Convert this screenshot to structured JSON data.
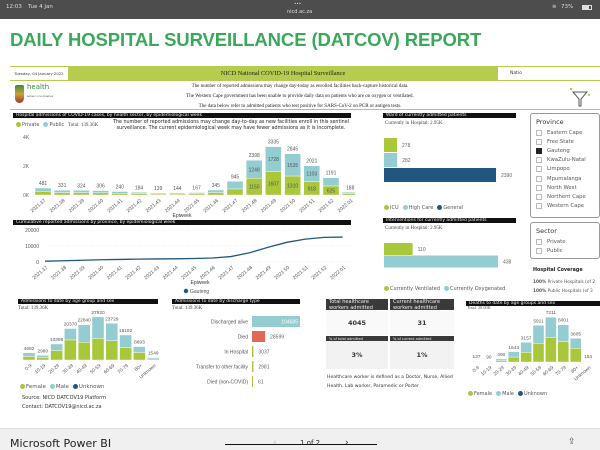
{
  "status_bar": {
    "time": "12:03",
    "date": "Tue 4 Jan",
    "url": "nicd.ac.za",
    "battery": "73%",
    "dots": "•••"
  },
  "report_title": "DAILY HOSPITAL SURVEILLANCE (DATCOV) REPORT",
  "banner": {
    "date": "Tuesday, 04 January 2022",
    "title": "NICD National COVID-19 Hospital Surveillance",
    "right_tab": "Natio"
  },
  "logo": {
    "text": "health",
    "sub": "REPUBLIC OF SOUTH AFRICA"
  },
  "notes": [
    "The number of reported admissions may change day-today as enrolled facilities back-capture historical data.",
    "The Western Cape government has been unable to provide daily data on patients who are on oxygen or ventilated.",
    "The data below refer to admitted patients who test positive for SARS-CoV-2 on PCR or antigen tests."
  ],
  "colors": {
    "green": "#a8c73a",
    "teal": "#93cdd1",
    "navy": "#21577e",
    "red": "#e06a55",
    "title_green": "#3aa85a"
  },
  "chart_data": [
    {
      "type": "bar",
      "stacked": true,
      "title": "Hospital admissions of COVID-19 cases, by health sector, by epidemiological week",
      "total": "Total: 139.36K",
      "note": "The number of reported admissions may change day-to-day as new facilities enroll in this sentinel surveillance. The current epidemiological week may have fewer admissions as it is incomplete.",
      "xlabel": "Epiweek",
      "yticks": [
        "0K",
        "2K",
        "4K"
      ],
      "ylim": [
        0,
        4000
      ],
      "categories": [
        "2021.37",
        "2021.38",
        "2021.39",
        "2021.40",
        "2021.41",
        "2021.42",
        "2021.43",
        "2021.44",
        "2021.45",
        "2021.46",
        "2021.47",
        "2021.48",
        "2021.49",
        "2021.50",
        "2021.51",
        "2021.52",
        "2022.01"
      ],
      "totals": [
        481,
        331,
        324,
        306,
        240,
        184,
        139,
        144,
        167,
        345,
        945,
        2398,
        3335,
        2845,
        2021,
        1191,
        188
      ],
      "series": [
        {
          "name": "Private",
          "values": [
            250,
            170,
            165,
            150,
            120,
            90,
            70,
            70,
            80,
            170,
            418,
            1150,
            1607,
            1310,
            918,
            625,
            90
          ]
        },
        {
          "name": "Public",
          "values": [
            231,
            161,
            159,
            156,
            120,
            94,
            69,
            74,
            87,
            175,
            527,
            1248,
            1728,
            1535,
            1103,
            566,
            98
          ]
        }
      ]
    },
    {
      "type": "line",
      "title": "Cumulative reported admissions by province, by epidemiological week",
      "xlabel": "Epiweek",
      "yticks": [
        "0",
        "10000",
        "20000"
      ],
      "ylim": [
        0,
        20000
      ],
      "categories": [
        "2021.37",
        "2021.38",
        "2021.39",
        "2021.40",
        "2021.41",
        "2021.42",
        "2021.43",
        "2021.44",
        "2021.45",
        "2021.46",
        "2021.47",
        "2021.48",
        "2021.49",
        "2021.50",
        "2021.51",
        "2021.52",
        "2022.01"
      ],
      "series": [
        {
          "name": "Gauteng",
          "values": [
            500,
            800,
            1100,
            1400,
            1600,
            1800,
            1900,
            2000,
            2200,
            2500,
            3400,
            5800,
            9200,
            12300,
            14300,
            15400,
            15600
          ]
        }
      ]
    },
    {
      "type": "bar",
      "orientation": "horizontal",
      "title": "Ward of currently admitted patients",
      "subtitle": "Currently in Hospital: 2.95K",
      "categories": [
        "ICU",
        "High Care",
        "General"
      ],
      "values": [
        278,
        282,
        2390
      ],
      "series": [
        {
          "name": "ICU"
        },
        {
          "name": "High Care"
        },
        {
          "name": "General"
        }
      ]
    },
    {
      "type": "bar",
      "orientation": "horizontal",
      "title": "Interventions for currently admitted patients",
      "subtitle": "Currently in Hospital: 2.95K",
      "categories": [
        "Currently Ventilated",
        "Currently Oxygenated"
      ],
      "values": [
        110,
        438
      ],
      "series": [
        {
          "name": "Currently Ventilated"
        },
        {
          "name": "Currently Oxygenated"
        }
      ]
    },
    {
      "type": "bar",
      "stacked": true,
      "title": "Admissions to date by age group and sex",
      "total": "Total: 139.36K",
      "categories": [
        "0-9",
        "10-19",
        "20-29",
        "30-39",
        "40-49",
        "50-59",
        "60-69",
        "70-79",
        "80+",
        "Unknown"
      ],
      "totals": [
        4692,
        2980,
        10398,
        20370,
        22840,
        27920,
        23729,
        16192,
        8693,
        1549
      ],
      "series": [
        {
          "name": "Female",
          "values": [
            2300,
            1500,
            6200,
            13000,
            11500,
            14000,
            12500,
            8000,
            4900,
            700
          ]
        },
        {
          "name": "Male",
          "values": [
            2392,
            1480,
            4198,
            7370,
            11340,
            13920,
            11229,
            8192,
            3793,
            849
          ]
        },
        {
          "name": "Unknown",
          "values": [
            0,
            0,
            0,
            0,
            0,
            0,
            0,
            0,
            0,
            0
          ]
        }
      ]
    },
    {
      "type": "bar",
      "orientation": "horizontal",
      "title": "Admissions to date by discharge type",
      "total": "Total: 139.36K",
      "categories": [
        "Discharged alive",
        "Died",
        "In Hospital",
        "Transfer to other facility",
        "Died (non-COVID)"
      ],
      "values": [
        104685,
        28599,
        3037,
        2981,
        61
      ]
    },
    {
      "type": "bar",
      "stacked": true,
      "title": "Deaths to date by age groups and sex",
      "total": "Total: 28.60K",
      "categories": [
        "0-9",
        "10-19",
        "20-29",
        "30-39",
        "40-49",
        "50-59",
        "60-69",
        "70-79",
        "80+",
        "Unknown"
      ],
      "totals": [
        137,
        90,
        490,
        1643,
        3157,
        5911,
        7211,
        6001,
        3805,
        154
      ],
      "series": [
        {
          "name": "Female",
          "values": [
            70,
            45,
            200,
            800,
            1550,
            3000,
            3900,
            3300,
            2200,
            80
          ]
        },
        {
          "name": "Male",
          "values": [
            67,
            45,
            290,
            843,
            1607,
            2911,
            3311,
            2701,
            1605,
            74
          ]
        },
        {
          "name": "Unknown",
          "values": [
            0,
            0,
            0,
            0,
            0,
            0,
            0,
            0,
            0,
            0
          ]
        }
      ]
    }
  ],
  "province_slicer": {
    "title": "Province",
    "items": [
      {
        "label": "Eastern Cape",
        "checked": false
      },
      {
        "label": "Free State",
        "checked": false
      },
      {
        "label": "Gauteng",
        "checked": true
      },
      {
        "label": "KwaZulu-Natal",
        "checked": false
      },
      {
        "label": "Limpopo",
        "checked": false
      },
      {
        "label": "Mpumalanga",
        "checked": false
      },
      {
        "label": "North West",
        "checked": false
      },
      {
        "label": "Northern Cape",
        "checked": false
      },
      {
        "label": "Western Cape",
        "checked": false
      }
    ]
  },
  "sector_slicer": {
    "title": "Sector",
    "items": [
      {
        "label": "Private",
        "checked": false
      },
      {
        "label": "Public",
        "checked": false
      }
    ]
  },
  "coverage": {
    "title": "Hospital Coverage",
    "rows": [
      {
        "pct": "100%",
        "label": "Private Hospitals (of 2"
      },
      {
        "pct": "100%",
        "label": "Public Hospitals (of 3"
      }
    ]
  },
  "hcw": {
    "h1": "Total healthcare workers admitted",
    "v1": "4045",
    "h2": "Current healthcare workers admitted",
    "v2": "31",
    "h3": "% of total admitted",
    "v3": "3%",
    "h4": "% of current admitted",
    "v4": "1%",
    "note": "Healthcare worker is defined as a Doctor, Nurse, Allied Health,  Lab worker, Paramedic or Porter"
  },
  "source": "Source: NICD DATCOV19 Platform",
  "contact": "Contact: DATCOV19@nicd.ac.za",
  "footer": {
    "brand": "Microsoft Power BI",
    "page": "1 of 2"
  }
}
